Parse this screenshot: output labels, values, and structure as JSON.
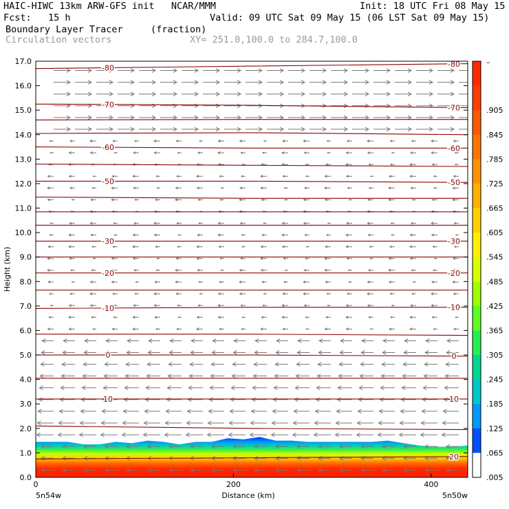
{
  "header": {
    "left_line1": "HAIC-HIWC 13km ARW-GFS init   NCAR/MMM",
    "left_line2": "Fcst:   15 h",
    "right_line1": "Init: 18 UTC Fri 08 May 15",
    "right_line2": "Valid: 09 UTC Sat 09 May 15 (06 LST Sat 09 May 15)",
    "field_name": "Boundary Layer Tracer",
    "field_units": "(fraction)",
    "vector_label": "Circulation vectors",
    "xy_label": "XY= 251.0,100.0 to 284.7,100.0"
  },
  "chart_data": {
    "type": "cross-section",
    "ylabel": "Height (km)",
    "xlabel": "Distance (km)",
    "ylim": [
      0,
      17
    ],
    "xlim": [
      0,
      437
    ],
    "y_ticks": [
      "0.0",
      "1.0",
      "2.0",
      "3.0",
      "4.0",
      "5.0",
      "6.0",
      "7.0",
      "8.0",
      "9.0",
      "10.0",
      "11.0",
      "12.0",
      "13.0",
      "14.0",
      "15.0",
      "16.0",
      "17.0"
    ],
    "x_ticks": [
      {
        "value": 0,
        "label": "0"
      },
      {
        "value": 200,
        "label": "200"
      },
      {
        "value": 400,
        "label": "400"
      }
    ],
    "x_end_labels": {
      "left": "5n54w",
      "right": "5n50w"
    },
    "colorbar": {
      "labels": [
        ".905",
        ".845",
        ".785",
        ".725",
        ".665",
        ".605",
        ".545",
        ".485",
        ".425",
        ".365",
        ".305",
        ".245",
        ".185",
        ".125",
        ".065",
        ".005"
      ],
      "top_label": "–",
      "colors": [
        "#ff2a00",
        "#ff3d00",
        "#ff5800",
        "#ff7400",
        "#ff9200",
        "#ffb000",
        "#ffd000",
        "#ffee00",
        "#d8ff00",
        "#9cff00",
        "#5cff20",
        "#24f050",
        "#00d890",
        "#00c8c8",
        "#0098ff",
        "#0050ff",
        "#ffffff"
      ]
    },
    "contour_color": "#8b0000",
    "isotherms": [
      {
        "temp": -80,
        "label": "-80",
        "heights": [
          16.7,
          16.8,
          16.9
        ]
      },
      {
        "temp": -70,
        "label": "-70",
        "heights": [
          15.25,
          15.2,
          15.1
        ]
      },
      {
        "temp": -65,
        "label": "",
        "heights": [
          14.6,
          14.62,
          14.62
        ]
      },
      {
        "temp": -62,
        "label": "",
        "heights": [
          14.05,
          14.08,
          14.0
        ]
      },
      {
        "temp": -60,
        "label": "-60",
        "heights": [
          13.5,
          13.45,
          13.45
        ]
      },
      {
        "temp": -55,
        "label": "",
        "heights": [
          12.8,
          12.75,
          12.7
        ]
      },
      {
        "temp": -50,
        "label": "-50",
        "heights": [
          12.1,
          12.1,
          12.05
        ]
      },
      {
        "temp": -45,
        "label": "",
        "heights": [
          11.45,
          11.4,
          11.4
        ]
      },
      {
        "temp": -40,
        "label": "",
        "heights": [
          10.85,
          10.85,
          10.85
        ]
      },
      {
        "temp": -35,
        "label": "",
        "heights": [
          10.3,
          10.3,
          10.3
        ]
      },
      {
        "temp": -30,
        "label": "-30",
        "heights": [
          9.65,
          9.65,
          9.65
        ]
      },
      {
        "temp": -25,
        "label": "",
        "heights": [
          9.0,
          9.0,
          9.0
        ]
      },
      {
        "temp": -20,
        "label": "-20",
        "heights": [
          8.35,
          8.35,
          8.35
        ]
      },
      {
        "temp": -15,
        "label": "",
        "heights": [
          7.65,
          7.65,
          7.65
        ]
      },
      {
        "temp": -10,
        "label": "-10",
        "heights": [
          6.9,
          6.95,
          6.95
        ]
      },
      {
        "temp": -5,
        "label": "",
        "heights": [
          5.85,
          5.85,
          5.8
        ]
      },
      {
        "temp": 0,
        "label": "0",
        "heights": [
          5.0,
          5.0,
          4.95
        ]
      },
      {
        "temp": 5,
        "label": "",
        "heights": [
          4.05,
          4.05,
          4.05
        ]
      },
      {
        "temp": 10,
        "label": "10",
        "heights": [
          3.2,
          3.2,
          3.2
        ]
      },
      {
        "temp": 15,
        "label": "",
        "heights": [
          2.1,
          2.0,
          1.95
        ]
      },
      {
        "temp": 20,
        "label": "20",
        "heights": [
          0.75,
          0.8,
          0.85
        ]
      }
    ],
    "boundary_layer_top_km": [
      1.45,
      1.45,
      1.45,
      1.35,
      1.35,
      1.45,
      1.4,
      1.5,
      1.45,
      1.35,
      1.45,
      1.45,
      1.6,
      1.55,
      1.65,
      1.5,
      1.5,
      1.45,
      1.45,
      1.45,
      1.45,
      1.45,
      1.5,
      1.4,
      1.3,
      1.25,
      1.25,
      1.3
    ],
    "wind_vectors": {
      "upper_direction": "east",
      "mid_direction": "west",
      "lower_direction": "west"
    }
  }
}
